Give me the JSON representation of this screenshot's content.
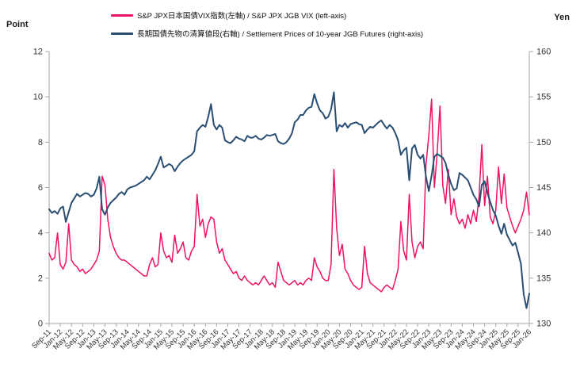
{
  "legend": {
    "items": [
      {
        "label": "S&P JPX日本国債VIX指数(左軸) / S&P JPX JGB VIX (left-axis)",
        "color": "#EE1164"
      },
      {
        "label": "長期国債先物の清算値段(右軸) / Settlement Prices of 10-year JGB Futures (right-axis)",
        "color": "#2A4E73"
      }
    ]
  },
  "chart_data": {
    "type": "line",
    "title": "",
    "grid": false,
    "legend_position": "top",
    "left_axis": {
      "title": "Point",
      "min": 0,
      "max": 12,
      "step": 2
    },
    "right_axis": {
      "title": "Yen",
      "min": 130,
      "max": 160,
      "step": 5
    },
    "x_tick_every": 4,
    "x_tick_labels": [
      "Sep-11",
      "Jan-12",
      "May-12",
      "Sep-12",
      "Jan-13",
      "May-13",
      "Sep-13",
      "Jan-14",
      "May-14",
      "Sep-14",
      "Jan-15",
      "May-15",
      "Sep-15",
      "Jan-16",
      "May-16",
      "Sep-16",
      "Jan-17",
      "May-17",
      "Sep-17",
      "Jan-18",
      "May-18",
      "Sep-18",
      "Jan-19",
      "May-19",
      "Sep-19",
      "Jan-20",
      "May-20",
      "Sep-20",
      "Jan-21",
      "May-21",
      "Sep-21",
      "Jan-22",
      "May-22",
      "Sep-22",
      "Jan-23",
      "May-23",
      "Sep-23",
      "Jan-24",
      "May-24",
      "Sep-24",
      "Jan-25",
      "May-25",
      "Sep-25",
      "Jan-26"
    ],
    "x_resolution": "monthly, Sep-11 through Jan-26",
    "series": [
      {
        "name": "S&P JPX日本国債VIX指数(左軸) / S&P JPX JGB VIX (left-axis)",
        "axis": "left",
        "color": "#EE1164",
        "values": [
          3.1,
          2.8,
          2.9,
          4.0,
          2.6,
          2.4,
          2.7,
          4.4,
          2.8,
          2.6,
          2.5,
          2.3,
          2.4,
          2.2,
          2.3,
          2.4,
          2.6,
          2.8,
          3.2,
          6.5,
          6.1,
          4.6,
          3.8,
          3.4,
          3.1,
          2.9,
          2.8,
          2.8,
          2.7,
          2.6,
          2.5,
          2.4,
          2.3,
          2.2,
          2.1,
          2.1,
          2.6,
          2.9,
          2.5,
          2.6,
          4.0,
          3.2,
          2.9,
          3.0,
          2.7,
          3.9,
          3.1,
          3.3,
          3.6,
          2.9,
          2.8,
          3.2,
          3.4,
          5.7,
          4.3,
          4.6,
          3.8,
          4.4,
          4.7,
          4.6,
          3.6,
          3.1,
          3.3,
          2.8,
          2.6,
          2.4,
          2.2,
          2.3,
          2.0,
          1.9,
          2.1,
          1.9,
          1.8,
          1.7,
          1.8,
          1.7,
          1.9,
          2.1,
          1.9,
          1.7,
          1.8,
          1.6,
          2.7,
          2.3,
          1.9,
          1.8,
          1.7,
          1.8,
          1.9,
          1.7,
          1.8,
          1.7,
          1.9,
          2.0,
          1.9,
          2.9,
          2.5,
          2.3,
          2.0,
          1.9,
          1.9,
          2.6,
          6.8,
          4.2,
          3.0,
          3.5,
          2.4,
          2.2,
          1.9,
          1.7,
          1.6,
          1.5,
          1.6,
          3.4,
          2.2,
          1.8,
          1.7,
          1.6,
          1.5,
          1.4,
          1.6,
          1.7,
          1.6,
          1.5,
          1.9,
          2.4,
          4.5,
          3.2,
          2.8,
          5.7,
          3.6,
          2.9,
          3.4,
          3.6,
          3.3,
          7.0,
          8.3,
          9.9,
          6.0,
          7.5,
          9.6,
          6.1,
          5.3,
          6.8,
          4.8,
          5.5,
          4.7,
          4.4,
          4.6,
          4.2,
          4.8,
          4.4,
          5.0,
          4.5,
          5.6,
          7.9,
          5.2,
          6.5,
          4.7,
          4.4,
          5.0,
          6.9,
          5.3,
          6.6,
          5.1,
          4.7,
          4.3,
          4.0,
          4.3,
          4.6,
          5.0,
          5.8,
          4.8
        ]
      },
      {
        "name": "長期国債先物の清算値段(右軸) / Settlement Prices of 10-year JGB Futures (right-axis)",
        "axis": "right",
        "color": "#2A4E73",
        "values": [
          142.6,
          142.2,
          142.4,
          142.1,
          142.7,
          142.9,
          141.2,
          142.3,
          143.3,
          143.8,
          144.3,
          144.0,
          144.2,
          144.4,
          144.3,
          144.0,
          144.2,
          144.9,
          146.2,
          142.6,
          142.0,
          142.8,
          143.3,
          143.6,
          143.9,
          144.3,
          144.5,
          144.2,
          144.8,
          145.0,
          145.1,
          145.2,
          145.4,
          145.6,
          145.8,
          146.2,
          145.9,
          146.4,
          146.9,
          147.6,
          148.4,
          147.2,
          147.4,
          147.6,
          147.4,
          146.8,
          147.3,
          147.7,
          148.0,
          148.2,
          148.4,
          148.6,
          149.0,
          151.2,
          151.6,
          151.9,
          151.7,
          152.8,
          154.2,
          151.9,
          151.4,
          151.9,
          151.6,
          150.2,
          150.0,
          149.9,
          150.2,
          150.6,
          150.4,
          150.3,
          150.1,
          150.7,
          150.5,
          150.5,
          150.7,
          150.4,
          150.3,
          150.5,
          150.8,
          150.7,
          150.8,
          150.9,
          150.1,
          149.9,
          149.8,
          150.0,
          150.4,
          151.0,
          152.2,
          152.5,
          153.0,
          153.0,
          153.5,
          153.8,
          153.9,
          155.3,
          154.3,
          153.5,
          153.2,
          152.6,
          152.8,
          153.6,
          155.5,
          151.2,
          151.9,
          151.7,
          152.1,
          151.6,
          152.0,
          152.1,
          152.2,
          152.0,
          151.9,
          151.0,
          151.4,
          151.7,
          151.6,
          151.9,
          152.2,
          152.4,
          151.9,
          151.5,
          151.9,
          151.6,
          151.0,
          150.2,
          148.6,
          149.1,
          149.4,
          145.8,
          149.3,
          149.7,
          148.6,
          148.2,
          148.6,
          146.2,
          144.6,
          146.3,
          148.4,
          148.7,
          148.5,
          148.3,
          147.7,
          146.4,
          145.4,
          144.7,
          144.9,
          146.6,
          146.4,
          146.1,
          145.8,
          145.0,
          144.2,
          143.7,
          142.9,
          145.3,
          145.7,
          144.4,
          143.4,
          142.5,
          141.9,
          140.8,
          139.9,
          141.0,
          139.8,
          139.2,
          138.6,
          138.9,
          137.8,
          136.6,
          133.2,
          131.7,
          133.3
        ]
      }
    ],
    "axis_color": "#A6A6A6"
  }
}
